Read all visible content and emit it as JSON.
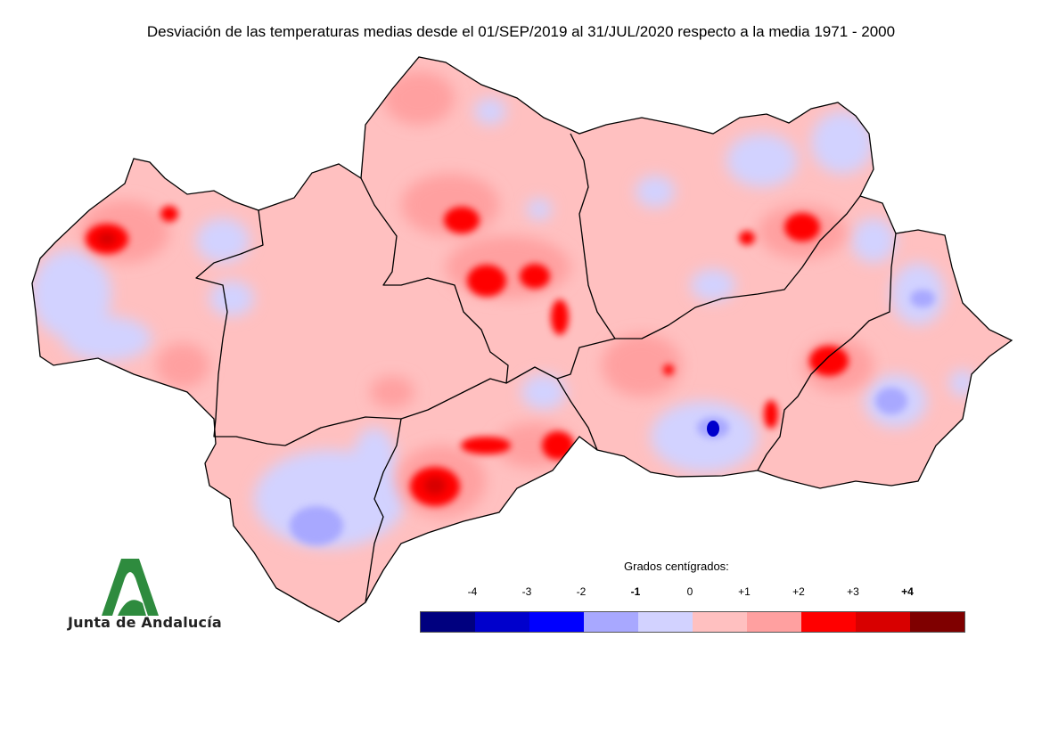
{
  "title": "Desviación de las temperaturas medias desde el 01/SEP/2019 al 31/JUL/2020 respecto a la media 1971 - 2000",
  "legend": {
    "title": "Grados centígrados:",
    "ticks": [
      {
        "label": "-4",
        "bold": false
      },
      {
        "label": "-3",
        "bold": false
      },
      {
        "label": "-2",
        "bold": false
      },
      {
        "label": "-1",
        "bold": true
      },
      {
        "label": "0",
        "bold": false
      },
      {
        "label": "+1",
        "bold": false
      },
      {
        "label": "+2",
        "bold": false
      },
      {
        "label": "+3",
        "bold": false
      },
      {
        "label": "+4",
        "bold": true
      }
    ],
    "colors": [
      "#00007f",
      "#0000cc",
      "#0000ff",
      "#a8a8ff",
      "#d2d2ff",
      "#ffc0c0",
      "#ffa0a0",
      "#ff0000",
      "#d80000",
      "#7f0000"
    ]
  },
  "map": {
    "region": "Andalucía",
    "base_color": "#ffc0c0",
    "province_border_color": "#000000"
  },
  "logo": {
    "text": "Junta de Andalucía",
    "color": "#2e8b3e"
  }
}
